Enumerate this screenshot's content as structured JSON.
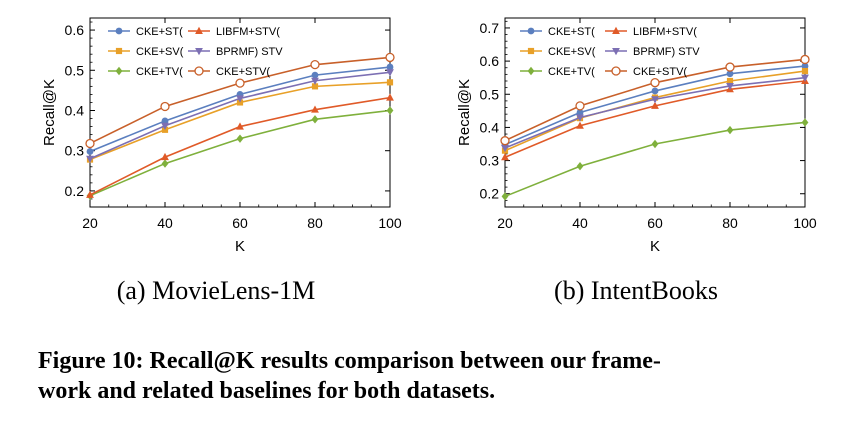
{
  "chart_data": [
    {
      "type": "line",
      "caption": "(a) MovieLens-1M",
      "xlabel": "K",
      "ylabel": "Recall@K",
      "x": [
        20,
        40,
        60,
        80,
        100
      ],
      "xlim": [
        20,
        100
      ],
      "ylim": [
        0.16,
        0.63
      ],
      "xticks": [
        "20",
        "40",
        "60",
        "80",
        "100"
      ],
      "yticks": [
        0.2,
        0.3,
        0.4,
        0.5,
        0.6
      ],
      "ytick_labels": [
        "0.2",
        "0.3",
        "0.4",
        "0.5",
        "0.6"
      ],
      "grid": false,
      "legend_position": "top-left",
      "series": [
        {
          "name": "CKE+ST(",
          "color": "#5b7fbf",
          "marker": "circle",
          "values": [
            0.298,
            0.374,
            0.44,
            0.488,
            0.508
          ]
        },
        {
          "name": "CKE+SV(",
          "color": "#e8a028",
          "marker": "square",
          "values": [
            0.278,
            0.352,
            0.42,
            0.46,
            0.47
          ]
        },
        {
          "name": "CKE+TV(",
          "color": "#7fb03c",
          "marker": "diamond",
          "values": [
            0.188,
            0.268,
            0.33,
            0.378,
            0.4
          ]
        },
        {
          "name": "LIBFM+STV(",
          "color": "#e05a28",
          "marker": "triangle-up",
          "values": [
            0.19,
            0.284,
            0.36,
            0.402,
            0.432
          ]
        },
        {
          "name": "BPRMF) STV",
          "color": "#7c6fb3",
          "marker": "triangle-down",
          "values": [
            0.28,
            0.362,
            0.43,
            0.474,
            0.495
          ]
        },
        {
          "name": "CKE+STV(",
          "color": "#c8602a",
          "marker": "open-circle",
          "values": [
            0.318,
            0.41,
            0.468,
            0.514,
            0.532
          ]
        }
      ]
    },
    {
      "type": "line",
      "caption": "(b) IntentBooks",
      "xlabel": "K",
      "ylabel": "Recall@K",
      "x": [
        20,
        40,
        60,
        80,
        100
      ],
      "xlim": [
        20,
        100
      ],
      "ylim": [
        0.16,
        0.73
      ],
      "xticks": [
        "20",
        "40",
        "60",
        "80",
        "100"
      ],
      "yticks": [
        0.2,
        0.3,
        0.4,
        0.5,
        0.6,
        0.7
      ],
      "ytick_labels": [
        "0.2",
        "0.3",
        "0.4",
        "0.5",
        "0.6",
        "0.7"
      ],
      "grid": false,
      "legend_position": "top-left",
      "series": [
        {
          "name": "CKE+ST(",
          "color": "#5b7fbf",
          "marker": "circle",
          "values": [
            0.348,
            0.445,
            0.51,
            0.562,
            0.585
          ]
        },
        {
          "name": "CKE+SV(",
          "color": "#e8a028",
          "marker": "square",
          "values": [
            0.33,
            0.428,
            0.49,
            0.54,
            0.57
          ]
        },
        {
          "name": "CKE+TV(",
          "color": "#7fb03c",
          "marker": "diamond",
          "values": [
            0.192,
            0.283,
            0.35,
            0.392,
            0.415
          ]
        },
        {
          "name": "LIBFM+STV(",
          "color": "#e05a28",
          "marker": "triangle-up",
          "values": [
            0.31,
            0.405,
            0.465,
            0.515,
            0.54
          ]
        },
        {
          "name": "BPRMF) STV",
          "color": "#7c6fb3",
          "marker": "triangle-down",
          "values": [
            0.338,
            0.43,
            0.485,
            0.525,
            0.55
          ]
        },
        {
          "name": "CKE+STV(",
          "color": "#c8602a",
          "marker": "open-circle",
          "values": [
            0.36,
            0.465,
            0.535,
            0.582,
            0.605
          ]
        }
      ]
    }
  ],
  "figure_caption_line1": "Figure 10: Recall@K results comparison between our frame-",
  "figure_caption_line2": "work and related baselines for both datasets."
}
